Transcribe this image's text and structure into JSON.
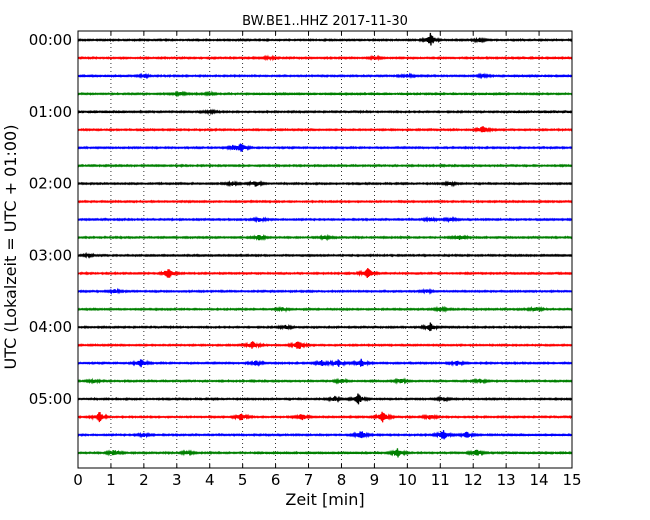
{
  "chart_data": {
    "type": "line",
    "title": "BW.BE1..HHZ 2017-11-30",
    "xlabel": "Zeit  [min]",
    "ylabel": "UTC (Lokalzeit = UTC + 01:00)",
    "xlim": [
      0,
      15
    ],
    "x_ticks": [
      "0",
      "1",
      "2",
      "3",
      "4",
      "5",
      "6",
      "7",
      "8",
      "9",
      "10",
      "11",
      "12",
      "13",
      "14",
      "15"
    ],
    "y_tick_labels": [
      "00:00",
      "01:00",
      "02:00",
      "03:00",
      "04:00",
      "05:00"
    ],
    "y_tick_rows": [
      0,
      4,
      8,
      12,
      16,
      20
    ],
    "grid_vertical": true,
    "row_colors": [
      "#000000",
      "#ff0000",
      "#0000ff",
      "#008000"
    ],
    "row_interval_minutes": 15,
    "rows": [
      {
        "start": "00:00",
        "events": [
          [
            10.7,
            1.0
          ],
          [
            12.2,
            0.3
          ]
        ]
      },
      {
        "start": "00:15",
        "events": [
          [
            5.8,
            0.25
          ],
          [
            9.0,
            0.25
          ]
        ]
      },
      {
        "start": "00:30",
        "events": [
          [
            2.0,
            0.3
          ],
          [
            10.0,
            0.3
          ],
          [
            12.3,
            0.25
          ]
        ]
      },
      {
        "start": "00:45",
        "events": [
          [
            3.1,
            0.25
          ],
          [
            4.0,
            0.2
          ]
        ]
      },
      {
        "start": "01:00",
        "events": [
          [
            4.0,
            0.2
          ]
        ]
      },
      {
        "start": "01:15",
        "events": [
          [
            12.3,
            0.6
          ]
        ]
      },
      {
        "start": "01:30",
        "events": [
          [
            4.95,
            0.75
          ],
          [
            4.7,
            0.3
          ]
        ]
      },
      {
        "start": "01:45",
        "events": []
      },
      {
        "start": "02:00",
        "events": [
          [
            4.7,
            0.3
          ],
          [
            5.4,
            0.45
          ],
          [
            11.3,
            0.3
          ]
        ]
      },
      {
        "start": "02:15",
        "events": []
      },
      {
        "start": "02:30",
        "events": [
          [
            5.5,
            0.3
          ],
          [
            10.7,
            0.3
          ],
          [
            11.3,
            0.25
          ]
        ]
      },
      {
        "start": "02:45",
        "events": [
          [
            5.5,
            0.45
          ],
          [
            7.5,
            0.25
          ],
          [
            11.6,
            0.4
          ]
        ]
      },
      {
        "start": "03:00",
        "events": [
          [
            0.3,
            0.2
          ]
        ]
      },
      {
        "start": "03:15",
        "events": [
          [
            2.75,
            0.85
          ],
          [
            8.8,
            0.85
          ]
        ]
      },
      {
        "start": "03:30",
        "events": [
          [
            1.1,
            0.3
          ],
          [
            10.6,
            0.25
          ]
        ]
      },
      {
        "start": "03:45",
        "events": [
          [
            6.2,
            0.3
          ],
          [
            11.0,
            0.3
          ],
          [
            13.9,
            0.35
          ]
        ]
      },
      {
        "start": "04:00",
        "events": [
          [
            6.3,
            0.3
          ],
          [
            10.7,
            0.7
          ]
        ]
      },
      {
        "start": "04:15",
        "events": [
          [
            5.3,
            0.6
          ],
          [
            6.7,
            0.8
          ]
        ]
      },
      {
        "start": "04:30",
        "events": [
          [
            1.9,
            0.7
          ],
          [
            5.4,
            0.4
          ],
          [
            7.4,
            0.5
          ],
          [
            7.9,
            0.6
          ],
          [
            8.6,
            0.6
          ],
          [
            11.5,
            0.4
          ]
        ]
      },
      {
        "start": "04:45",
        "events": [
          [
            0.5,
            0.25
          ],
          [
            8.0,
            0.35
          ],
          [
            9.8,
            0.35
          ],
          [
            12.2,
            0.3
          ]
        ]
      },
      {
        "start": "05:00",
        "events": [
          [
            7.8,
            0.4
          ],
          [
            8.5,
            0.9
          ],
          [
            11.1,
            0.35
          ]
        ]
      },
      {
        "start": "05:15",
        "events": [
          [
            0.65,
            0.85
          ],
          [
            4.95,
            0.6
          ],
          [
            6.8,
            0.55
          ],
          [
            9.25,
            0.85
          ],
          [
            10.7,
            0.4
          ]
        ]
      },
      {
        "start": "05:30",
        "events": [
          [
            2.0,
            0.3
          ],
          [
            8.6,
            0.7
          ],
          [
            11.1,
            0.9
          ],
          [
            11.8,
            0.5
          ]
        ]
      },
      {
        "start": "05:45",
        "events": [
          [
            1.1,
            0.5
          ],
          [
            3.3,
            0.3
          ],
          [
            9.7,
            0.75
          ],
          [
            12.1,
            0.6
          ]
        ]
      }
    ]
  }
}
